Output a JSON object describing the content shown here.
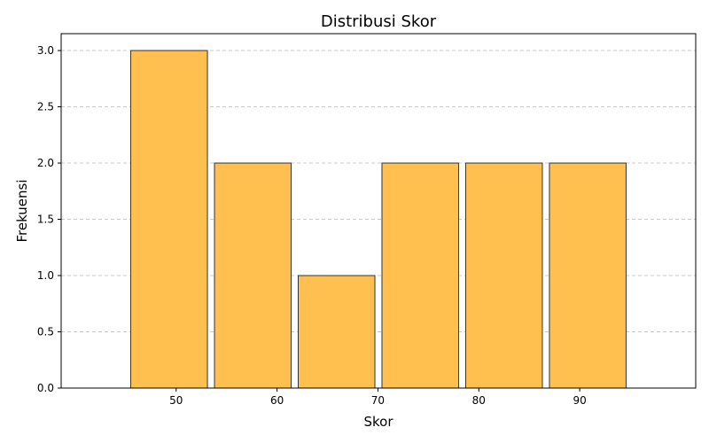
{
  "chart_data": {
    "type": "bar",
    "title": "Distribusi Skor",
    "xlabel": "Skor",
    "ylabel": "Frekuensi",
    "bins": [
      {
        "start": 45.5,
        "end": 53.1,
        "value": 3
      },
      {
        "start": 53.8,
        "end": 61.4,
        "value": 2
      },
      {
        "start": 62.1,
        "end": 69.7,
        "value": 1
      },
      {
        "start": 70.4,
        "end": 78.0,
        "value": 2
      },
      {
        "start": 78.7,
        "end": 86.3,
        "value": 2
      },
      {
        "start": 87.0,
        "end": 94.6,
        "value": 2
      }
    ],
    "xlim": [
      38.6,
      101.5
    ],
    "ylim": [
      0,
      3.15
    ],
    "xticks": [
      50,
      60,
      70,
      80,
      90
    ],
    "yticks": [
      0.0,
      0.5,
      1.0,
      1.5,
      2.0,
      2.5,
      3.0
    ],
    "grid": "y-dashed",
    "colors": {
      "bar_fill": "#ffc050",
      "bar_edge": "#333333",
      "grid": "#c8c8c8"
    }
  }
}
